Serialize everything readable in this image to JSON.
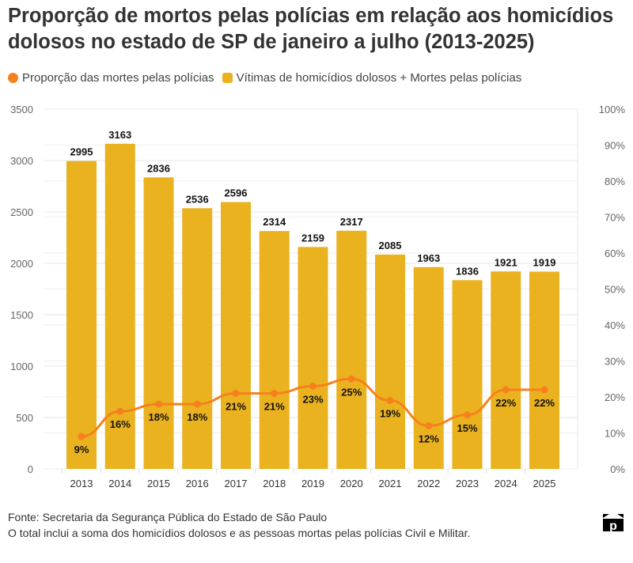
{
  "chart_data": {
    "type": "bar",
    "title": "Proporção de mortos pelas polícias em relação aos homicídios dolosos no estado de SP de janeiro a julho (2013-2025)",
    "categories": [
      "2013",
      "2014",
      "2015",
      "2016",
      "2017",
      "2018",
      "2019",
      "2020",
      "2021",
      "2022",
      "2023",
      "2024",
      "2025"
    ],
    "series": [
      {
        "name": "Vítimas de homicídios dolosos + Mortes pelas polícias",
        "type": "bar",
        "axis": "left",
        "color": "#EAB21E",
        "values": [
          2995,
          3163,
          2836,
          2536,
          2596,
          2314,
          2159,
          2317,
          2085,
          1963,
          1836,
          1921,
          1919
        ]
      },
      {
        "name": "Proporção das mortes pelas polícias",
        "type": "line",
        "axis": "right",
        "color": "#F7801E",
        "values": [
          9,
          16,
          18,
          18,
          21,
          21,
          23,
          25,
          19,
          12,
          15,
          22,
          22
        ]
      }
    ],
    "ylim": [
      0,
      3500
    ],
    "yticks": [
      "0",
      "500",
      "1000",
      "1500",
      "2000",
      "2500",
      "3000",
      "3500"
    ],
    "y2lim": [
      0,
      100
    ],
    "y2ticks": [
      "0%",
      "10%",
      "20%",
      "30%",
      "40%",
      "50%",
      "60%",
      "70%",
      "80%",
      "90%",
      "100%"
    ],
    "grid": true,
    "legend_position": "top-left"
  },
  "footer": {
    "source": "Fonte: Secretaria da Segurança Pública do Estado de São Paulo",
    "note": "O total inclui a soma dos homicídios dolosos e as pessoas mortas pelas polícias Civil e Militar."
  },
  "logo": {
    "text": "p"
  }
}
